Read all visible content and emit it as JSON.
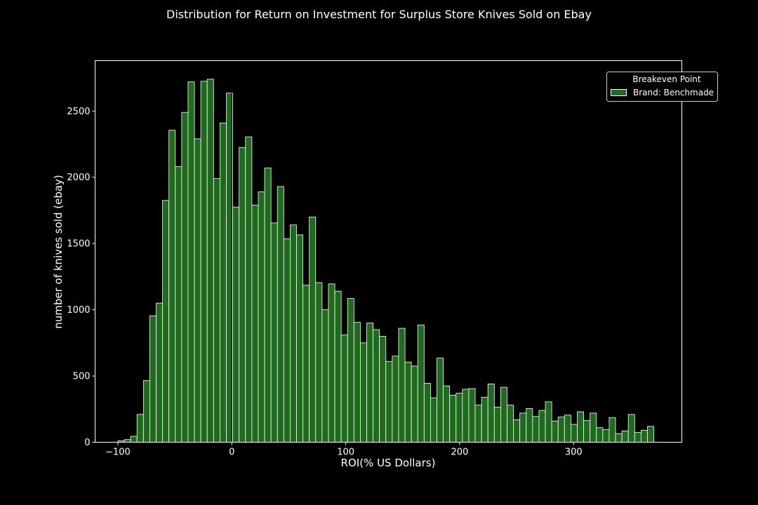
{
  "chart_data": {
    "type": "bar",
    "title": "Distribution for Return on Investment for Surplus Store Knives Sold on Ebay",
    "xlabel": "ROI(% US Dollars)",
    "ylabel": "number of knives sold (ebay)",
    "xlim": [
      -120,
      395
    ],
    "ylim": [
      0,
      2880
    ],
    "x_ticks": [
      -100,
      0,
      100,
      200,
      300
    ],
    "y_ticks": [
      0,
      500,
      1000,
      1500,
      2000,
      2500
    ],
    "bin_start": -100,
    "bin_width": 5.6,
    "breakeven_x": 0,
    "legend": {
      "title": "Breakeven Point",
      "entry": "Brand: Benchmade",
      "placement": "top-right"
    },
    "colors": {
      "background": "#000000",
      "bar_fill": "#1e6b1e",
      "bar_edge": "#ffffff",
      "breakeven_line": "#000000",
      "text": "#ffffff"
    },
    "series": [
      {
        "name": "Brand: Benchmade",
        "values": [
          10,
          20,
          45,
          210,
          465,
          955,
          1050,
          1825,
          2355,
          2080,
          2490,
          2720,
          2290,
          2725,
          2740,
          1990,
          2410,
          2635,
          1775,
          2225,
          2305,
          1790,
          1890,
          2070,
          1655,
          1930,
          1535,
          1640,
          1565,
          1185,
          1700,
          1205,
          1000,
          1195,
          1140,
          810,
          1085,
          905,
          750,
          900,
          850,
          800,
          610,
          650,
          860,
          605,
          575,
          885,
          445,
          335,
          635,
          425,
          355,
          370,
          400,
          405,
          280,
          340,
          440,
          265,
          415,
          280,
          170,
          220,
          255,
          195,
          240,
          305,
          160,
          190,
          205,
          135,
          230,
          165,
          220,
          110,
          95,
          185,
          65,
          85,
          210,
          75,
          90,
          120
        ]
      }
    ]
  }
}
